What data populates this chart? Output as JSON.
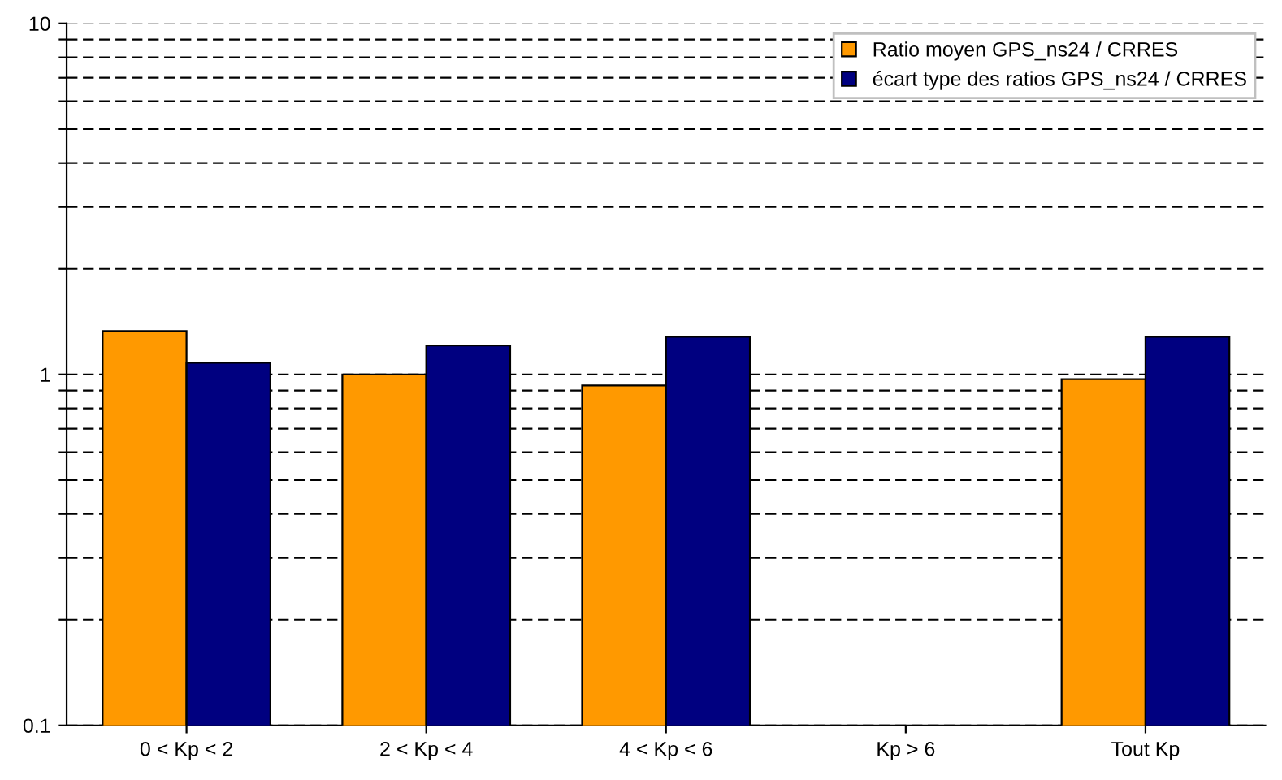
{
  "chart_data": {
    "type": "bar",
    "categories": [
      "0 < Kp < 2",
      "2 < Kp < 4",
      "4 < Kp < 6",
      "Kp > 6",
      "Tout Kp"
    ],
    "series": [
      {
        "name": "Ratio moyen GPS_ns24 / CRRES",
        "color": "#ff9900",
        "values": [
          1.33,
          1.0,
          0.93,
          null,
          0.97
        ]
      },
      {
        "name": "écart type des ratios GPS_ns24 / CRRES",
        "color": "#000080",
        "values": [
          1.08,
          1.21,
          1.28,
          null,
          1.28
        ]
      }
    ],
    "log": "y",
    "ylim": [
      0.1,
      10
    ],
    "yticks": [
      0.1,
      {
        "value": 0.2,
        "label": null
      },
      {
        "value": 0.3,
        "label": null
      },
      {
        "value": 0.4,
        "label": null
      },
      {
        "value": 0.5,
        "label": null
      },
      {
        "value": 0.6,
        "label": null
      },
      {
        "value": 0.7,
        "label": null
      },
      {
        "value": 0.8,
        "label": null
      },
      {
        "value": 0.9,
        "label": null
      },
      1,
      {
        "value": 2,
        "label": null
      },
      {
        "value": 3,
        "label": null
      },
      {
        "value": 4,
        "label": null
      },
      {
        "value": 5,
        "label": null
      },
      {
        "value": 6,
        "label": null
      },
      {
        "value": 7,
        "label": null
      },
      {
        "value": 8,
        "label": null
      },
      {
        "value": 9,
        "label": null
      },
      10
    ],
    "grid": "y",
    "legend": "top right"
  }
}
